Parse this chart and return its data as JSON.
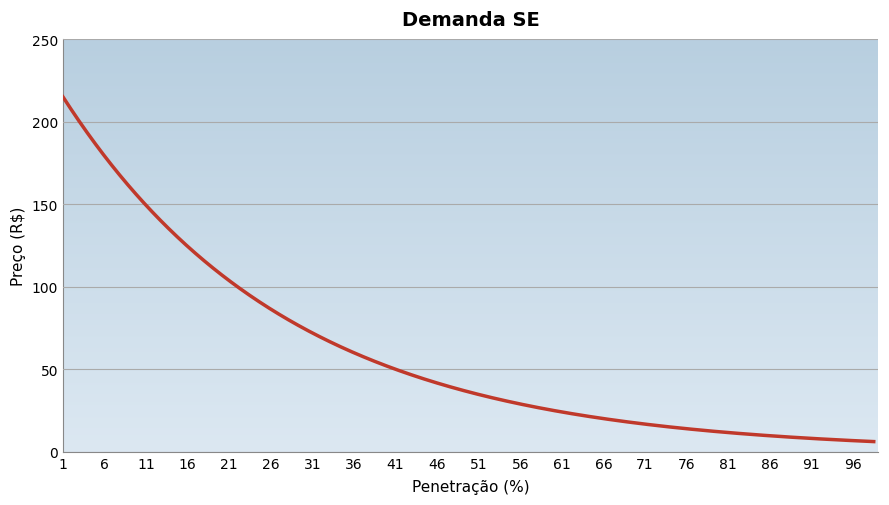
{
  "title": "Demanda SE",
  "xlabel": "Penetração (%)",
  "ylabel": "Preço (R$)",
  "x_ticks": [
    1,
    6,
    11,
    16,
    21,
    26,
    31,
    36,
    41,
    46,
    51,
    56,
    61,
    66,
    71,
    76,
    81,
    86,
    91,
    96
  ],
  "y_ticks": [
    0,
    50,
    100,
    150,
    200,
    250
  ],
  "ylim": [
    0,
    250
  ],
  "xlim": [
    1,
    99
  ],
  "line_color": "#c0392b",
  "line_width": 2.5,
  "bg_color_top": "#b8cfe0",
  "bg_color_bottom": "#dce8f2",
  "title_fontsize": 14,
  "axis_label_fontsize": 11,
  "tick_fontsize": 10,
  "curve_A": 223.0,
  "curve_k": 0.0365,
  "grid_color": "#aaaaaa",
  "spine_color": "#888888"
}
